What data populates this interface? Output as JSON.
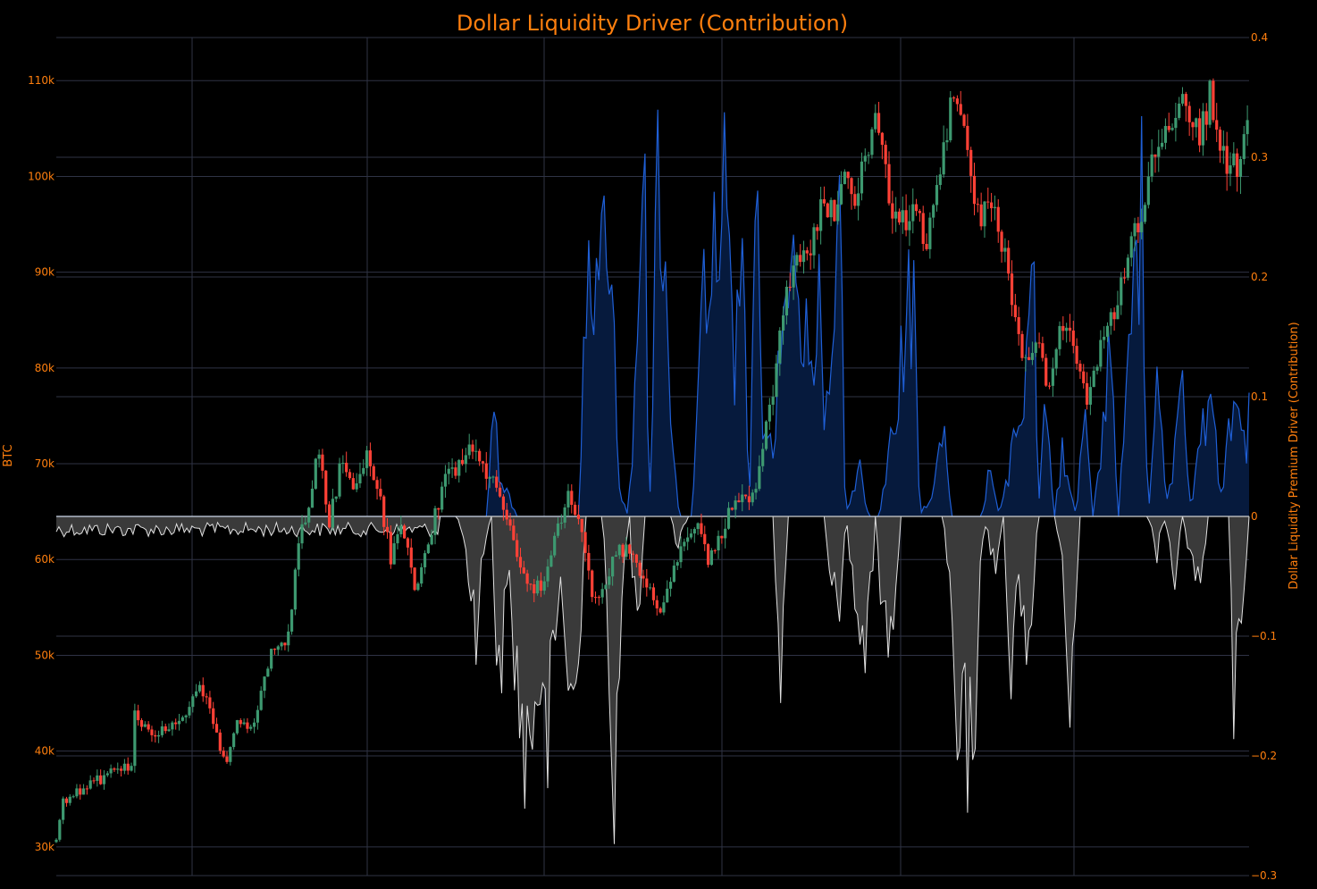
{
  "chart_data": {
    "type": "candlestick+area",
    "title": "Dollar Liquidity Driver (Contribution)",
    "title_color": "#ff7f0e",
    "axis_text_color": "#ff7f0e",
    "background": "#000000",
    "grid": true,
    "grid_color": "#2f3345",
    "up_color": "#3d9970",
    "down_color": "#ff4136",
    "positive_line_color": "#1f5fd6",
    "positive_fill_color": "#061a3d",
    "negative_line_color": "#e0e0e0",
    "negative_fill_color": "#3a3a3a",
    "zero_line_color": "#d0d0d0",
    "y_left": {
      "title": "BTC",
      "range": [
        27000,
        114500
      ],
      "ticks": [
        30000,
        40000,
        50000,
        60000,
        70000,
        80000,
        90000,
        100000,
        110000
      ],
      "tick_labels": [
        "30k",
        "40k",
        "50k",
        "60k",
        "70k",
        "80k",
        "90k",
        "100k",
        "110k"
      ]
    },
    "y_right": {
      "title": "Dollar Liquidity Premium Driver (Contribution)",
      "range": [
        -0.3,
        0.4
      ],
      "ticks": [
        -0.3,
        -0.2,
        -0.1,
        0,
        0.1,
        0.2,
        0.3,
        0.4
      ],
      "tick_labels": [
        "−0.3",
        "−0.2",
        "−0.1",
        "0",
        "0.1",
        "0.2",
        "0.3",
        "0.4"
      ]
    },
    "btc_price_anchors": [
      [
        0,
        30500
      ],
      [
        6,
        34500
      ],
      [
        30,
        36000
      ],
      [
        60,
        37500
      ],
      [
        88,
        38500
      ],
      [
        92,
        44000
      ],
      [
        110,
        42000
      ],
      [
        140,
        42500
      ],
      [
        170,
        47000
      ],
      [
        190,
        41000
      ],
      [
        202,
        39000
      ],
      [
        210,
        43000
      ],
      [
        230,
        42500
      ],
      [
        250,
        50000
      ],
      [
        270,
        51000
      ],
      [
        285,
        62000
      ],
      [
        300,
        68000
      ],
      [
        305,
        72500
      ],
      [
        320,
        64000
      ],
      [
        335,
        70500
      ],
      [
        350,
        67000
      ],
      [
        365,
        71500
      ],
      [
        380,
        66000
      ],
      [
        392,
        60000
      ],
      [
        405,
        64000
      ],
      [
        420,
        57000
      ],
      [
        435,
        61000
      ],
      [
        450,
        67000
      ],
      [
        470,
        70000
      ],
      [
        490,
        71500
      ],
      [
        510,
        68000
      ],
      [
        525,
        66000
      ],
      [
        540,
        60000
      ],
      [
        555,
        57500
      ],
      [
        570,
        57000
      ],
      [
        585,
        62000
      ],
      [
        600,
        66500
      ],
      [
        615,
        64000
      ],
      [
        630,
        55000
      ],
      [
        645,
        58000
      ],
      [
        660,
        61500
      ],
      [
        675,
        60000
      ],
      [
        690,
        58000
      ],
      [
        705,
        54000
      ],
      [
        720,
        57500
      ],
      [
        735,
        62000
      ],
      [
        750,
        63500
      ],
      [
        765,
        59500
      ],
      [
        780,
        62500
      ],
      [
        795,
        67000
      ],
      [
        815,
        66000
      ],
      [
        830,
        73000
      ],
      [
        840,
        78000
      ],
      [
        855,
        89000
      ],
      [
        880,
        92000
      ],
      [
        900,
        97500
      ],
      [
        915,
        96000
      ],
      [
        925,
        100000
      ],
      [
        935,
        98000
      ],
      [
        950,
        103000
      ],
      [
        960,
        107000
      ],
      [
        975,
        98000
      ],
      [
        990,
        95000
      ],
      [
        1005,
        96500
      ],
      [
        1020,
        93000
      ],
      [
        1035,
        101000
      ],
      [
        1050,
        107500
      ],
      [
        1065,
        104000
      ],
      [
        1080,
        96000
      ],
      [
        1095,
        97000
      ],
      [
        1110,
        93000
      ],
      [
        1125,
        84000
      ],
      [
        1135,
        80000
      ],
      [
        1150,
        82000
      ],
      [
        1165,
        78000
      ],
      [
        1180,
        85000
      ],
      [
        1195,
        81000
      ],
      [
        1210,
        76000
      ],
      [
        1225,
        84000
      ],
      [
        1240,
        85000
      ],
      [
        1255,
        92000
      ],
      [
        1270,
        95000
      ],
      [
        1285,
        103000
      ],
      [
        1300,
        104500
      ],
      [
        1315,
        108000
      ],
      [
        1330,
        106000
      ],
      [
        1340,
        104000
      ],
      [
        1352,
        108500
      ],
      [
        1370,
        102000
      ],
      [
        1385,
        100500
      ],
      [
        1398,
        107000
      ]
    ],
    "driver_anchors": [
      [
        0,
        -0.01
      ],
      [
        448,
        -0.02
      ],
      [
        449,
        0
      ],
      [
        505,
        0
      ],
      [
        512,
        0.16
      ],
      [
        518,
        0.04
      ],
      [
        540,
        0
      ],
      [
        580,
        0
      ],
      [
        600,
        0
      ],
      [
        605,
        -0.05
      ],
      [
        612,
        0
      ],
      [
        620,
        0.18
      ],
      [
        632,
        0.28
      ],
      [
        640,
        0.22
      ],
      [
        650,
        0.3
      ],
      [
        658,
        0.03
      ],
      [
        670,
        0
      ],
      [
        690,
        0.28
      ],
      [
        695,
        0.0
      ],
      [
        705,
        0.33
      ],
      [
        712,
        0.24
      ],
      [
        720,
        0.08
      ],
      [
        730,
        0.0
      ],
      [
        745,
        0.0
      ],
      [
        752,
        0.15
      ],
      [
        760,
        0.28
      ],
      [
        768,
        0.2
      ],
      [
        778,
        0.36
      ],
      [
        785,
        0.32
      ],
      [
        795,
        0.15
      ],
      [
        805,
        0.26
      ],
      [
        812,
        0.0
      ],
      [
        820,
        0.32
      ],
      [
        830,
        0.06
      ],
      [
        840,
        0.07
      ],
      [
        852,
        0.18
      ],
      [
        862,
        0.22
      ],
      [
        868,
        0.28
      ],
      [
        875,
        0.2
      ],
      [
        882,
        0.15
      ],
      [
        892,
        0.23
      ],
      [
        900,
        0.08
      ],
      [
        910,
        0.12
      ],
      [
        918,
        0.3
      ],
      [
        925,
        0.0
      ],
      [
        940,
        0.05
      ],
      [
        952,
        0.0
      ],
      [
        965,
        0.0
      ],
      [
        985,
        0.12
      ],
      [
        998,
        0.2
      ],
      [
        1005,
        0.22
      ],
      [
        1012,
        0.0
      ],
      [
        1030,
        0.03
      ],
      [
        1040,
        0.1
      ],
      [
        1050,
        0.0
      ],
      [
        1085,
        0.0
      ],
      [
        1095,
        0.05
      ],
      [
        1105,
        0.0
      ],
      [
        1125,
        0.08
      ],
      [
        1135,
        0.1
      ],
      [
        1145,
        0.3
      ],
      [
        1150,
        0.0
      ],
      [
        1160,
        0.12
      ],
      [
        1170,
        0.0
      ],
      [
        1180,
        0.07
      ],
      [
        1195,
        0.0
      ],
      [
        1205,
        0.1
      ],
      [
        1215,
        0.0
      ],
      [
        1225,
        0.06
      ],
      [
        1235,
        0.2
      ],
      [
        1245,
        0.0
      ],
      [
        1255,
        0.12
      ],
      [
        1265,
        0.25
      ],
      [
        1272,
        0.3
      ],
      [
        1280,
        0.0
      ],
      [
        1290,
        0.14
      ],
      [
        1300,
        0.02
      ],
      [
        1310,
        0.05
      ],
      [
        1320,
        0.12
      ],
      [
        1330,
        0.0
      ],
      [
        1340,
        0.08
      ],
      [
        1355,
        0.1
      ],
      [
        1365,
        0.02
      ],
      [
        1380,
        0.12
      ],
      [
        1390,
        0.06
      ],
      [
        1398,
        0.09
      ]
    ],
    "negative_anchors": [
      [
        448,
        -0.02
      ],
      [
        450,
        0
      ],
      [
        470,
        0
      ],
      [
        478,
        -0.02
      ],
      [
        484,
        -0.08
      ],
      [
        494,
        -0.13
      ],
      [
        500,
        -0.04
      ],
      [
        510,
        0
      ],
      [
        518,
        -0.18
      ],
      [
        530,
        -0.06
      ],
      [
        548,
        -0.25
      ],
      [
        556,
        -0.22
      ],
      [
        566,
        -0.16
      ],
      [
        574,
        -0.26
      ],
      [
        584,
        -0.14
      ],
      [
        592,
        -0.06
      ],
      [
        602,
        -0.2
      ],
      [
        610,
        -0.18
      ],
      [
        620,
        0
      ],
      [
        640,
        0
      ],
      [
        654,
        -0.25
      ],
      [
        664,
        -0.05
      ],
      [
        672,
        0
      ],
      [
        680,
        -0.13
      ],
      [
        690,
        0
      ],
      [
        720,
        0
      ],
      [
        728,
        -0.03
      ],
      [
        740,
        0
      ],
      [
        840,
        0
      ],
      [
        848,
        -0.16
      ],
      [
        858,
        0
      ],
      [
        900,
        0
      ],
      [
        908,
        -0.06
      ],
      [
        918,
        -0.11
      ],
      [
        925,
        0
      ],
      [
        940,
        -0.1
      ],
      [
        950,
        -0.15
      ],
      [
        960,
        0
      ],
      [
        970,
        -0.12
      ],
      [
        980,
        -0.16
      ],
      [
        990,
        0
      ],
      [
        1040,
        0
      ],
      [
        1048,
        -0.08
      ],
      [
        1056,
        -0.27
      ],
      [
        1064,
        -0.23
      ],
      [
        1074,
        -0.25
      ],
      [
        1082,
        -0.07
      ],
      [
        1090,
        0
      ],
      [
        1100,
        -0.06
      ],
      [
        1110,
        0
      ],
      [
        1118,
        -0.17
      ],
      [
        1128,
        -0.07
      ],
      [
        1140,
        -0.13
      ],
      [
        1150,
        0
      ],
      [
        1170,
        0
      ],
      [
        1180,
        -0.06
      ],
      [
        1190,
        -0.19
      ],
      [
        1200,
        0
      ],
      [
        1280,
        0
      ],
      [
        1290,
        -0.04
      ],
      [
        1300,
        0
      ],
      [
        1310,
        -0.08
      ],
      [
        1320,
        0
      ],
      [
        1340,
        -0.09
      ],
      [
        1350,
        0
      ],
      [
        1375,
        0
      ],
      [
        1380,
        -0.18
      ],
      [
        1388,
        -0.11
      ],
      [
        1398,
        0
      ]
    ]
  }
}
